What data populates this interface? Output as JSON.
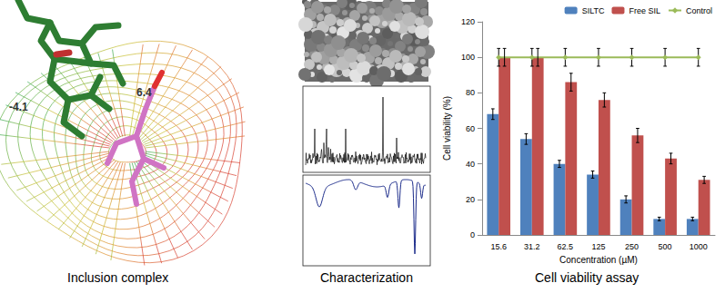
{
  "captions": [
    "Inclusion complex",
    "Characterization",
    "Cell viability assay"
  ],
  "annotations": [
    "-4.1",
    "6.4"
  ],
  "chart_data": {
    "type": "bar",
    "categories": [
      "15.6",
      "31.2",
      "62.5",
      "125",
      "250",
      "500",
      "1000"
    ],
    "series": [
      {
        "name": "SILTC",
        "color": "#4f81bd",
        "values": [
          68,
          54,
          40,
          34,
          20,
          9,
          9
        ],
        "errors": [
          3,
          3,
          2,
          2,
          2,
          1,
          1
        ]
      },
      {
        "name": "Free SIL",
        "color": "#c0504d",
        "values": [
          100,
          100,
          86,
          76,
          56,
          43,
          31
        ],
        "errors": [
          5,
          5,
          5,
          4,
          4,
          3,
          2
        ]
      },
      {
        "name": "Control",
        "type": "line",
        "marker": "diamond",
        "color": "#9bbb59",
        "values": [
          100,
          100,
          100,
          100,
          100,
          100,
          100
        ],
        "errors": [
          5,
          5,
          5,
          5,
          5,
          5,
          5
        ]
      }
    ],
    "xlabel": "Concentration (µM)",
    "ylabel": "Cell viability (%)",
    "ylim": [
      0,
      120
    ],
    "yticks": [
      0,
      20,
      40,
      60,
      80,
      100,
      120
    ],
    "grid": false,
    "legend": "top-right"
  }
}
